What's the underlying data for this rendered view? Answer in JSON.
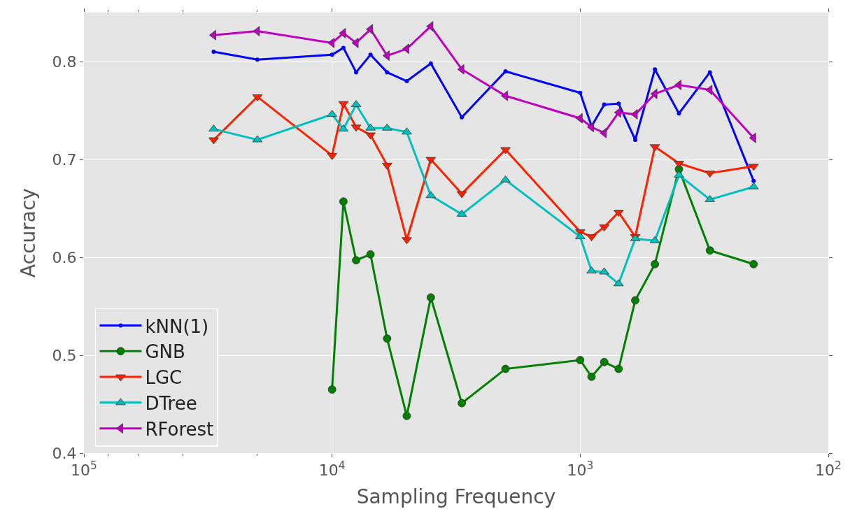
{
  "chart_data": {
    "type": "line",
    "xlabel": "Sampling Frequency",
    "ylabel": "Accuracy",
    "log": "x",
    "x": [
      30000,
      20000,
      10000,
      9000,
      8000,
      7000,
      6000,
      5000,
      4000,
      3000,
      2000,
      1000,
      900,
      800,
      700,
      600,
      500,
      400,
      300,
      200
    ],
    "xlim": [
      100000,
      100
    ],
    "xticks": [
      {
        "value": 100000,
        "label": "10$^{5}$"
      },
      {
        "value": 10000,
        "label": "10$^{4}$"
      },
      {
        "value": 1000,
        "label": "10$^{3}$"
      },
      {
        "value": 100,
        "label": "10$^{2}$"
      }
    ],
    "ylim": [
      0.4,
      0.85
    ],
    "yticks": [
      0.4,
      0.5,
      0.6,
      0.7,
      0.8
    ],
    "grid": true,
    "legend": "bottom left",
    "series": [
      {
        "name": "kNN(1)",
        "color": "#0000ff",
        "marker": "point",
        "values": [
          0.81,
          0.802,
          0.807,
          0.814,
          0.789,
          0.807,
          0.789,
          0.78,
          0.798,
          0.743,
          0.79,
          0.768,
          0.734,
          0.756,
          0.757,
          0.72,
          0.792,
          0.747,
          0.789,
          0.678
        ]
      },
      {
        "name": "GNB",
        "color": "#008000",
        "marker": "circle",
        "values": [
          null,
          null,
          0.465,
          0.657,
          0.597,
          0.603,
          0.517,
          0.438,
          0.559,
          0.451,
          0.486,
          0.495,
          0.478,
          0.493,
          0.486,
          0.556,
          0.593,
          0.69,
          0.607,
          0.593
        ]
      },
      {
        "name": "LGC",
        "color": "#ff2000",
        "marker": "triangle-down",
        "values": [
          0.72,
          0.764,
          0.704,
          0.757,
          0.733,
          0.725,
          0.694,
          0.618,
          0.7,
          0.665,
          0.71,
          0.626,
          0.621,
          0.631,
          0.646,
          0.621,
          0.713,
          0.696,
          0.686,
          0.693
        ]
      },
      {
        "name": "DTree",
        "color": "#00bfbf",
        "marker": "triangle-up",
        "values": [
          0.731,
          0.72,
          0.746,
          0.731,
          0.756,
          0.732,
          0.732,
          0.728,
          0.663,
          0.644,
          0.679,
          0.621,
          0.586,
          0.585,
          0.573,
          0.619,
          0.617,
          0.684,
          0.659,
          0.672
        ]
      },
      {
        "name": "RForest",
        "color": "#bf00bf",
        "marker": "triangle-left",
        "values": [
          0.827,
          0.831,
          0.819,
          0.829,
          0.819,
          0.833,
          0.806,
          0.813,
          0.836,
          0.792,
          0.765,
          0.742,
          0.733,
          0.727,
          0.748,
          0.746,
          0.767,
          0.776,
          0.771,
          0.722
        ]
      }
    ]
  }
}
